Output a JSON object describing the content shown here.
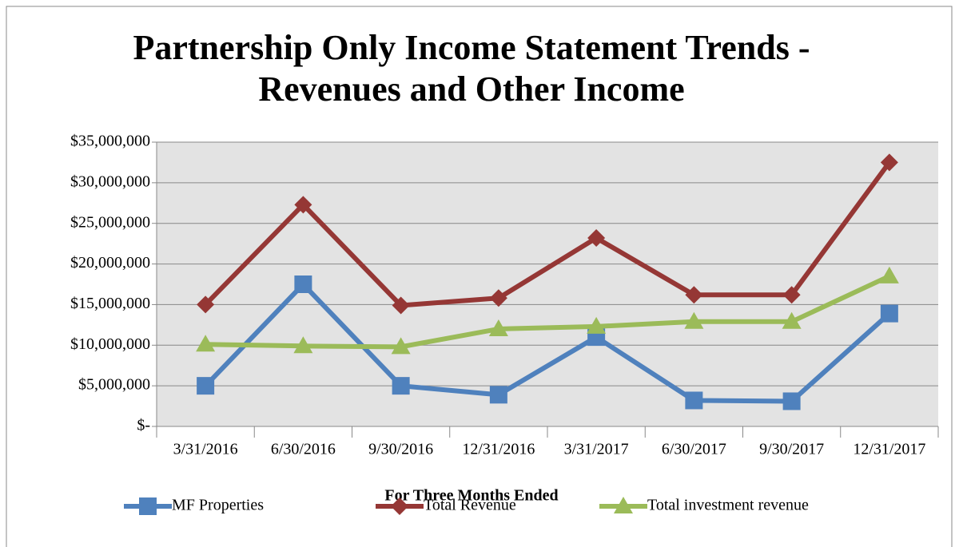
{
  "chart_data": {
    "type": "line",
    "title": "Partnership Only Income Statement Trends - Revenues and Other Income",
    "x_label": "For Three Months Ended",
    "categories": [
      "3/31/2016",
      "6/30/2016",
      "9/30/2016",
      "12/31/2016",
      "3/31/2017",
      "6/30/2017",
      "9/30/2017",
      "12/31/2017"
    ],
    "series": [
      {
        "name": "MF Properties",
        "color": "#4f81bd",
        "marker": "square",
        "values": [
          5000000,
          17500000,
          5000000,
          3900000,
          11000000,
          3200000,
          3100000,
          13900000
        ]
      },
      {
        "name": "Total Revenue",
        "color": "#953735",
        "marker": "diamond",
        "values": [
          15000000,
          27300000,
          14900000,
          15800000,
          23200000,
          16200000,
          16200000,
          32500000
        ]
      },
      {
        "name": "Total investment revenue",
        "color": "#9bbb59",
        "marker": "triangle",
        "values": [
          10100000,
          9900000,
          9800000,
          12000000,
          12300000,
          12900000,
          12900000,
          18500000
        ]
      }
    ],
    "ylim": [
      0,
      35000000
    ],
    "yticks": [
      {
        "value": 0,
        "label": "$-"
      },
      {
        "value": 5000000,
        "label": "$5,000,000"
      },
      {
        "value": 10000000,
        "label": "$10,000,000"
      },
      {
        "value": 15000000,
        "label": "$15,000,000"
      },
      {
        "value": 20000000,
        "label": "$20,000,000"
      },
      {
        "value": 25000000,
        "label": "$25,000,000"
      },
      {
        "value": 30000000,
        "label": "$30,000,000"
      },
      {
        "value": 35000000,
        "label": "$35,000,000"
      }
    ],
    "grid": true,
    "legend": "bottom"
  }
}
